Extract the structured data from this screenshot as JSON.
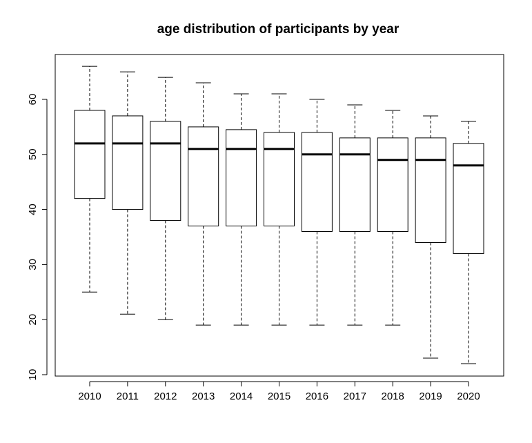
{
  "chart_data": {
    "type": "boxplot",
    "title": "age distribution of participants by year",
    "xlabel": "",
    "ylabel": "",
    "ylim": [
      10,
      70
    ],
    "yticks": [
      10,
      20,
      30,
      40,
      50,
      60
    ],
    "grid": false,
    "legend": "none",
    "categories": [
      "2010",
      "2011",
      "2012",
      "2013",
      "2014",
      "2015",
      "2016",
      "2017",
      "2018",
      "2019",
      "2020"
    ],
    "boxes": [
      {
        "min": 25,
        "q1": 42,
        "median": 52,
        "q3": 58,
        "max": 66
      },
      {
        "min": 21,
        "q1": 40,
        "median": 52,
        "q3": 57,
        "max": 65
      },
      {
        "min": 20,
        "q1": 38,
        "median": 52,
        "q3": 56,
        "max": 64
      },
      {
        "min": 19,
        "q1": 37,
        "median": 51,
        "q3": 55,
        "max": 63
      },
      {
        "min": 19,
        "q1": 37,
        "median": 51,
        "q3": 54.5,
        "max": 61
      },
      {
        "min": 19,
        "q1": 37,
        "median": 51,
        "q3": 54,
        "max": 61
      },
      {
        "min": 19,
        "q1": 36,
        "median": 50,
        "q3": 54,
        "max": 60
      },
      {
        "min": 19,
        "q1": 36,
        "median": 50,
        "q3": 53,
        "max": 59
      },
      {
        "min": 19,
        "q1": 36,
        "median": 49,
        "q3": 53,
        "max": 58
      },
      {
        "min": 13,
        "q1": 34,
        "median": 49,
        "q3": 53,
        "max": 57
      },
      {
        "min": 12,
        "q1": 32,
        "median": 48,
        "q3": 52,
        "max": 56
      }
    ]
  }
}
